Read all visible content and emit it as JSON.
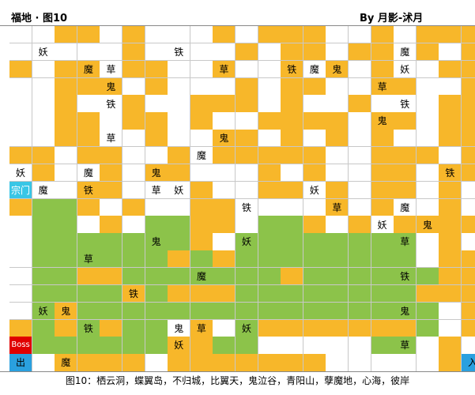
{
  "header": {
    "title": "福地 · 图10",
    "author": "By 月影-沭月"
  },
  "caption": "图10：栖云洞，蝶翼岛，不归城，比翼天，鬼泣谷，青阳山，孽魔地，心海，彼岸",
  "colors": {
    "orange": "#f7b72a",
    "green": "#8cc34a",
    "sect": "#39c6e6",
    "boss": "#e00000",
    "entrance": "#2aa0df"
  },
  "map": {
    "cols": 21,
    "rows": 15,
    "legend_codes": "O = orange path, G = green zone, . = empty, S = sect gate, B = boss, X = exit, E = entrance",
    "grid": [
      "..OO.O...O.OOO..O.OOO",
      ".....O....O.OO.OO.O.O",
      "O.OO.OO..O..O.O.O..OO",
      "..OOO.O...O.OO..OO..O",
      "..O..O..OOO.O..O...OO",
      "..OO.OO.O..OOOO.OO.OO",
      "..OO..O..OO.O.O.O..OO",
      "OO.OO..O.OOOOO..OOO.O",
      ".O..O.OO...O.O..OO.OO",
      "S..OO...O..OO.O.OO.O.",
      "OGGO.O..OO....O.O..O.",
      ".GG.O.GGOO.GGO.O.OOOO",
      ".GGGGGGGO.GGGGGGGG.O.",
      ".GGGGGGOGOGGGGGGGG.OO",
      ".GGOOGGGGGGGOGGGGGGOO"
    ],
    "grid_lower": [
      ".GGGGOGOOOGGGGGGGGOOO",
      ".GOGGGGGGGGGGGGGGGG.O",
      "OGOGOGG.O.GOOOOOOOG.O",
      "BGGGGGGOOGG.....GG.O.",
      "X.OOOO.OOOOOOO.....OE"
    ],
    "labels": [
      {
        "r": 1,
        "c": 1,
        "text": "妖"
      },
      {
        "r": 1,
        "c": 7,
        "text": "铁"
      },
      {
        "r": 1,
        "c": 17,
        "text": "魔"
      },
      {
        "r": 2,
        "c": 3,
        "text": "魔"
      },
      {
        "r": 2,
        "c": 4,
        "text": "草"
      },
      {
        "r": 2,
        "c": 9,
        "text": "草"
      },
      {
        "r": 2,
        "c": 12,
        "text": "铁"
      },
      {
        "r": 2,
        "c": 13,
        "text": "魔"
      },
      {
        "r": 2,
        "c": 14,
        "text": "鬼"
      },
      {
        "r": 2,
        "c": 17,
        "text": "妖"
      },
      {
        "r": 3,
        "c": 4,
        "text": "鬼"
      },
      {
        "r": 3,
        "c": 16,
        "text": "草"
      },
      {
        "r": 4,
        "c": 4,
        "text": "铁"
      },
      {
        "r": 4,
        "c": 17,
        "text": "铁"
      },
      {
        "r": 5,
        "c": 16,
        "text": "鬼"
      },
      {
        "r": 6,
        "c": 4,
        "text": "草"
      },
      {
        "r": 6,
        "c": 9,
        "text": "鬼"
      },
      {
        "r": 7,
        "c": 8,
        "text": "魔"
      },
      {
        "r": 8,
        "c": 0,
        "text": "妖"
      },
      {
        "r": 8,
        "c": 3,
        "text": "魔"
      },
      {
        "r": 8,
        "c": 6,
        "text": "鬼"
      },
      {
        "r": 8,
        "c": 19,
        "text": "铁"
      },
      {
        "r": 9,
        "c": 0,
        "text": "宗门"
      },
      {
        "r": 9,
        "c": 1,
        "text": "魔"
      },
      {
        "r": 9,
        "c": 3,
        "text": "铁"
      },
      {
        "r": 9,
        "c": 6,
        "text": "草"
      },
      {
        "r": 9,
        "c": 7,
        "text": "妖"
      },
      {
        "r": 9,
        "c": 13,
        "text": "妖"
      },
      {
        "r": 10,
        "c": 10,
        "text": "铁"
      },
      {
        "r": 10,
        "c": 14,
        "text": "草"
      },
      {
        "r": 10,
        "c": 17,
        "text": "魔"
      },
      {
        "r": 11,
        "c": 16,
        "text": "妖"
      },
      {
        "r": 11,
        "c": 18,
        "text": "鬼"
      },
      {
        "r": 12,
        "c": 6,
        "text": "鬼"
      },
      {
        "r": 12,
        "c": 10,
        "text": "妖"
      },
      {
        "r": 12,
        "c": 17,
        "text": "草"
      },
      {
        "r": 13,
        "c": 3,
        "text": "草"
      },
      {
        "r": 14,
        "c": 8,
        "text": "魔"
      },
      {
        "r": 14,
        "c": 17,
        "text": "铁"
      },
      {
        "r": 15,
        "c": 5,
        "text": "铁"
      },
      {
        "r": 16,
        "c": 1,
        "text": "妖"
      },
      {
        "r": 16,
        "c": 2,
        "text": "鬼"
      },
      {
        "r": 16,
        "c": 17,
        "text": "鬼"
      },
      {
        "r": 17,
        "c": 3,
        "text": "铁"
      },
      {
        "r": 17,
        "c": 7,
        "text": "鬼"
      },
      {
        "r": 17,
        "c": 8,
        "text": "草"
      },
      {
        "r": 17,
        "c": 10,
        "text": "妖"
      },
      {
        "r": 18,
        "c": 0,
        "text": "Boss"
      },
      {
        "r": 18,
        "c": 7,
        "text": "妖"
      },
      {
        "r": 18,
        "c": 17,
        "text": "草"
      },
      {
        "r": 19,
        "c": 0,
        "text": "出"
      },
      {
        "r": 19,
        "c": 2,
        "text": "魔"
      },
      {
        "r": 19,
        "c": 20,
        "text": "入"
      }
    ]
  }
}
